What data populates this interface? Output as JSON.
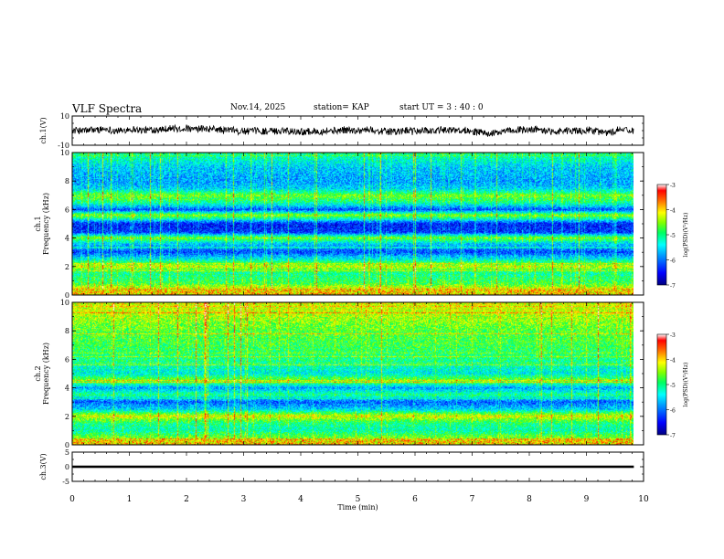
{
  "header": {
    "title": "VLF Spectra",
    "date": "Nov.14, 2025",
    "station": "station= KAP",
    "start": "start  UT =  3 : 40 : 0"
  },
  "chart_data": [
    {
      "type": "line",
      "name": "ch1-waveform",
      "ylabel": "ch.1(V)",
      "ylim": [
        -10,
        10
      ],
      "yticks": [
        "10",
        "-10"
      ],
      "xlim": [
        0,
        10
      ],
      "data_end_min": 9.83,
      "description_values": {
        "mean_v": 0,
        "amplitude_v": 4
      }
    },
    {
      "type": "heatmap",
      "name": "ch1-spectrogram",
      "ylabel": "ch.1\nFrequency (kHz)",
      "ylim": [
        0,
        10
      ],
      "yticks": [
        "0",
        "2",
        "4",
        "6",
        "8",
        "10"
      ],
      "xlim": [
        0,
        10
      ],
      "data_end_min": 9.83,
      "z_label": "log(PSD)(V²/Hz)",
      "z_range": [
        -7,
        -3
      ],
      "z_ticks": [
        "-3",
        "-4",
        "-5",
        "-6",
        "-7"
      ],
      "band_profile_khz_to_log_psd": [
        [
          0,
          -4.2
        ],
        [
          0.3,
          -4.0
        ],
        [
          0.8,
          -4.8
        ],
        [
          1.5,
          -5.1
        ],
        [
          2.0,
          -4.3
        ],
        [
          2.5,
          -5.4
        ],
        [
          3.0,
          -6.2
        ],
        [
          3.6,
          -5.6
        ],
        [
          4.0,
          -4.6
        ],
        [
          4.4,
          -6.3
        ],
        [
          5.0,
          -6.4
        ],
        [
          5.6,
          -4.5
        ],
        [
          6.0,
          -6.2
        ],
        [
          6.5,
          -5.1
        ],
        [
          7.0,
          -4.6
        ],
        [
          7.5,
          -5.6
        ],
        [
          8.0,
          -5.8
        ],
        [
          9.0,
          -5.6
        ],
        [
          10.0,
          -5.0
        ]
      ]
    },
    {
      "type": "heatmap",
      "name": "ch2-spectrogram",
      "ylabel": "ch.2\nFrequency (kHz)",
      "ylim": [
        0,
        10
      ],
      "yticks": [
        "0",
        "2",
        "4",
        "6",
        "8",
        "10"
      ],
      "xlim": [
        0,
        10
      ],
      "data_end_min": 9.83,
      "z_label": "log(PSD)(V²/Hz)",
      "z_range": [
        -7,
        -3
      ],
      "z_ticks": [
        "-3",
        "-4",
        "-5",
        "-6",
        "-7"
      ],
      "band_profile_khz_to_log_psd": [
        [
          0,
          -4.3
        ],
        [
          0.5,
          -4.6
        ],
        [
          1.0,
          -5.2
        ],
        [
          1.5,
          -5.0
        ],
        [
          2.0,
          -4.2
        ],
        [
          2.5,
          -5.6
        ],
        [
          3.0,
          -6.1
        ],
        [
          3.5,
          -5.0
        ],
        [
          4.0,
          -5.8
        ],
        [
          4.5,
          -4.5
        ],
        [
          5.0,
          -5.4
        ],
        [
          6.0,
          -5.0
        ],
        [
          7.0,
          -4.8
        ],
        [
          8.0,
          -4.7
        ],
        [
          9.0,
          -4.4
        ],
        [
          10.0,
          -4.2
        ]
      ]
    },
    {
      "type": "line",
      "name": "ch3-waveform",
      "ylabel": "ch.3(V)",
      "ylim": [
        -5,
        5
      ],
      "yticks": [
        "5",
        "0",
        "-5"
      ],
      "xlim": [
        0,
        10
      ],
      "data_end_min": 9.83,
      "description_values": {
        "mean_v": 0,
        "amplitude_v": 0.4
      }
    }
  ],
  "x_axis": {
    "label": "Time  (min)",
    "ticks": [
      "0",
      "1",
      "2",
      "3",
      "4",
      "5",
      "6",
      "7",
      "8",
      "9",
      "10"
    ]
  }
}
